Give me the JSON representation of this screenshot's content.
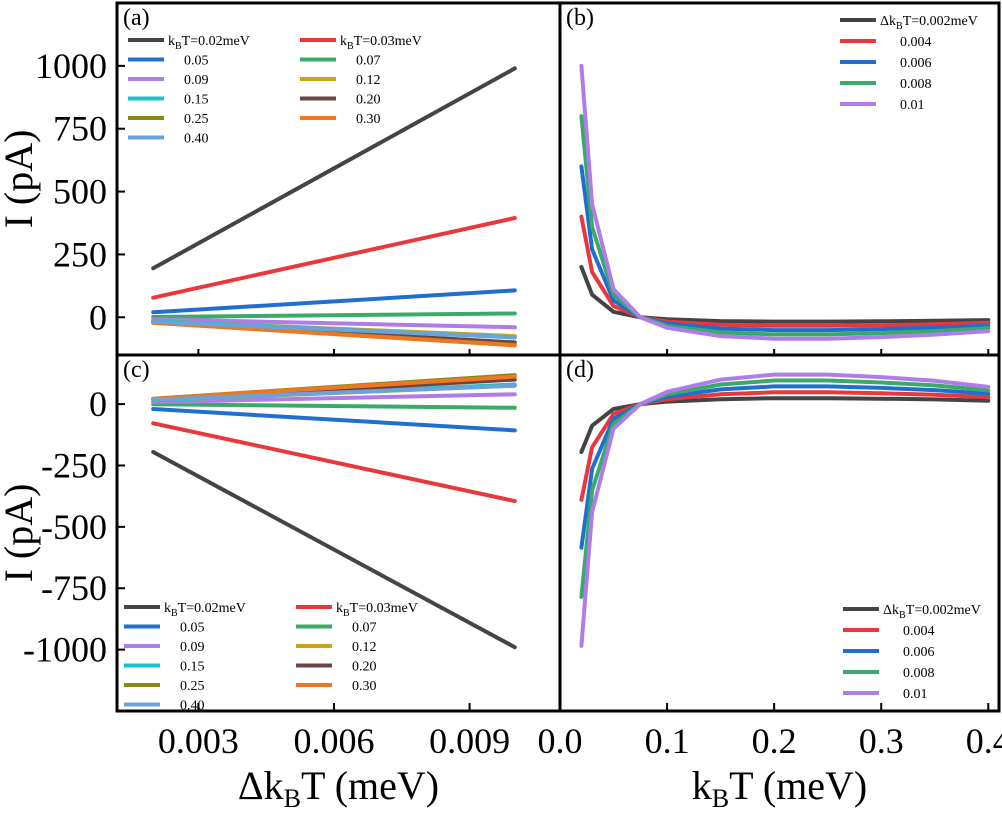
{
  "chart_data": [
    {
      "panel": "(a)",
      "type": "line",
      "ylabel_parts": [
        "I (pA)"
      ],
      "ylim": [
        -150,
        1250
      ],
      "xlim": [
        0.0012,
        0.011
      ],
      "yticks": [
        0,
        250,
        500,
        750,
        1000
      ],
      "ytick_labels": [
        "0",
        "250",
        "500",
        "750",
        "1000"
      ],
      "legend_title": "k_B T",
      "legend_cols": [
        [
          {
            "label_main": "k",
            "label_sub": "B",
            "label_rest": "T=0.02meV"
          },
          {
            "label_main": "0.05"
          },
          {
            "label_main": "0.09"
          },
          {
            "label_main": "0.15"
          },
          {
            "label_main": "0.25"
          },
          {
            "label_main": "0.40"
          }
        ],
        [
          {
            "label_main": "k",
            "label_sub": "B",
            "label_rest": "T=0.03meV"
          },
          {
            "label_main": "0.07"
          },
          {
            "label_main": "0.12"
          },
          {
            "label_main": "0.20"
          },
          {
            "label_main": "0.30"
          }
        ]
      ],
      "series": [
        {
          "kT": "0.02",
          "color": "#444444",
          "x": [
            0.002,
            0.01
          ],
          "y": [
            195,
            990
          ]
        },
        {
          "kT": "0.03",
          "color": "#e8383d",
          "x": [
            0.002,
            0.01
          ],
          "y": [
            78,
            395
          ]
        },
        {
          "kT": "0.05",
          "color": "#1f6fd1",
          "x": [
            0.002,
            0.01
          ],
          "y": [
            20,
            107
          ]
        },
        {
          "kT": "0.07",
          "color": "#3aaa6a",
          "x": [
            0.002,
            0.01
          ],
          "y": [
            1,
            15
          ]
        },
        {
          "kT": "0.09",
          "color": "#b07ce8",
          "x": [
            0.002,
            0.01
          ],
          "y": [
            -8,
            -40
          ]
        },
        {
          "kT": "0.12",
          "color": "#c9a413",
          "x": [
            0.002,
            0.01
          ],
          "y": [
            -15,
            -75
          ]
        },
        {
          "kT": "0.15",
          "color": "#17c3c8",
          "x": [
            0.002,
            0.01
          ],
          "y": [
            -15,
            -80
          ]
        },
        {
          "kT": "0.20",
          "color": "#6b4545",
          "x": [
            0.002,
            0.01
          ],
          "y": [
            -20,
            -100
          ]
        },
        {
          "kT": "0.25",
          "color": "#8a8a10",
          "x": [
            0.002,
            0.01
          ],
          "y": [
            -22,
            -110
          ]
        },
        {
          "kT": "0.30",
          "color": "#f07722",
          "x": [
            0.002,
            0.01
          ],
          "y": [
            -22,
            -112
          ]
        },
        {
          "kT": "0.40",
          "color": "#6aa3d8",
          "x": [
            0.002,
            0.01
          ],
          "y": [
            -18,
            -80
          ]
        }
      ]
    },
    {
      "panel": "(b)",
      "type": "line",
      "xlim": [
        0,
        0.41
      ],
      "ylim": [
        -150,
        1250
      ],
      "legend_cols": [
        [
          {
            "label_main": "Δk",
            "label_sub": "B",
            "label_rest": "T=0.002meV"
          },
          {
            "label_main": "0.004"
          },
          {
            "label_main": "0.006"
          },
          {
            "label_main": "0.008"
          },
          {
            "label_main": "0.01"
          }
        ]
      ],
      "series": [
        {
          "dkT": "0.002",
          "color": "#444444",
          "x": [
            0.02,
            0.03,
            0.05,
            0.075,
            0.1,
            0.15,
            0.2,
            0.25,
            0.3,
            0.35,
            0.4
          ],
          "y": [
            200,
            90,
            22,
            0,
            -8,
            -15,
            -17,
            -17,
            -16,
            -14,
            -11
          ]
        },
        {
          "dkT": "0.004",
          "color": "#e8383d",
          "x": [
            0.02,
            0.03,
            0.05,
            0.075,
            0.1,
            0.15,
            0.2,
            0.25,
            0.3,
            0.35,
            0.4
          ],
          "y": [
            400,
            180,
            45,
            0,
            -17,
            -30,
            -34,
            -34,
            -32,
            -28,
            -22
          ]
        },
        {
          "dkT": "0.006",
          "color": "#1f6fd1",
          "x": [
            0.02,
            0.03,
            0.05,
            0.075,
            0.1,
            0.15,
            0.2,
            0.25,
            0.3,
            0.35,
            0.4
          ],
          "y": [
            600,
            270,
            67,
            0,
            -25,
            -45,
            -51,
            -51,
            -47,
            -41,
            -33
          ]
        },
        {
          "dkT": "0.008",
          "color": "#3aaa6a",
          "x": [
            0.02,
            0.03,
            0.05,
            0.075,
            0.1,
            0.15,
            0.2,
            0.25,
            0.3,
            0.35,
            0.4
          ],
          "y": [
            800,
            360,
            90,
            0,
            -34,
            -60,
            -68,
            -68,
            -63,
            -55,
            -44
          ]
        },
        {
          "dkT": "0.01",
          "color": "#b07ce8",
          "x": [
            0.02,
            0.03,
            0.05,
            0.075,
            0.1,
            0.15,
            0.2,
            0.25,
            0.3,
            0.35,
            0.4
          ],
          "y": [
            1000,
            450,
            112,
            0,
            -42,
            -75,
            -85,
            -85,
            -79,
            -69,
            -55
          ]
        }
      ]
    },
    {
      "panel": "(c)",
      "type": "line",
      "ylabel_parts": [
        "I (pA)"
      ],
      "xlim": [
        0.0012,
        0.011
      ],
      "ylim": [
        -1250,
        200
      ],
      "yticks": [
        0,
        -250,
        -500,
        -750,
        -1000
      ],
      "ytick_labels": [
        "0",
        "-250",
        "-500",
        "-750",
        "-1000"
      ],
      "xticks": [
        0.003,
        0.006,
        0.009
      ],
      "xtick_labels": [
        "0.003",
        "0.006",
        "0.009"
      ],
      "xlabel_parts": [
        "Δk",
        "B",
        "T (meV)"
      ],
      "legend_cols": [
        [
          {
            "label_main": "k",
            "label_sub": "B",
            "label_rest": "T=0.02meV"
          },
          {
            "label_main": "0.05"
          },
          {
            "label_main": "0.09"
          },
          {
            "label_main": "0.15"
          },
          {
            "label_main": "0.25"
          },
          {
            "label_main": "0.40"
          }
        ],
        [
          {
            "label_main": "k",
            "label_sub": "B",
            "label_rest": "T=0.03meV"
          },
          {
            "label_main": "0.07"
          },
          {
            "label_main": "0.12"
          },
          {
            "label_main": "0.20"
          },
          {
            "label_main": "0.30"
          }
        ]
      ],
      "series": [
        {
          "kT": "0.02",
          "color": "#444444",
          "x": [
            0.002,
            0.01
          ],
          "y": [
            -195,
            -990
          ]
        },
        {
          "kT": "0.03",
          "color": "#e8383d",
          "x": [
            0.002,
            0.01
          ],
          "y": [
            -78,
            -395
          ]
        },
        {
          "kT": "0.05",
          "color": "#1f6fd1",
          "x": [
            0.002,
            0.01
          ],
          "y": [
            -20,
            -107
          ]
        },
        {
          "kT": "0.07",
          "color": "#3aaa6a",
          "x": [
            0.002,
            0.01
          ],
          "y": [
            -1,
            -15
          ]
        },
        {
          "kT": "0.09",
          "color": "#b07ce8",
          "x": [
            0.002,
            0.01
          ],
          "y": [
            8,
            40
          ]
        },
        {
          "kT": "0.12",
          "color": "#c9a413",
          "x": [
            0.002,
            0.01
          ],
          "y": [
            15,
            75
          ]
        },
        {
          "kT": "0.15",
          "color": "#17c3c8",
          "x": [
            0.002,
            0.01
          ],
          "y": [
            15,
            80
          ]
        },
        {
          "kT": "0.20",
          "color": "#6b4545",
          "x": [
            0.002,
            0.01
          ],
          "y": [
            20,
            100
          ]
        },
        {
          "kT": "0.25",
          "color": "#8a8a10",
          "x": [
            0.002,
            0.01
          ],
          "y": [
            22,
            118
          ]
        },
        {
          "kT": "0.30",
          "color": "#f07722",
          "x": [
            0.002,
            0.01
          ],
          "y": [
            22,
            112
          ]
        },
        {
          "kT": "0.40",
          "color": "#6aa3d8",
          "x": [
            0.002,
            0.01
          ],
          "y": [
            18,
            75
          ]
        }
      ]
    },
    {
      "panel": "(d)",
      "type": "line",
      "xlim": [
        0,
        0.41
      ],
      "ylim": [
        -1250,
        200
      ],
      "xticks": [
        0.0,
        0.1,
        0.2,
        0.3,
        0.4
      ],
      "xtick_labels": [
        "0.0",
        "0.1",
        "0.2",
        "0.3",
        "0.4"
      ],
      "xlabel_parts": [
        "k",
        "B",
        "T (meV)"
      ],
      "legend_cols": [
        [
          {
            "label_main": "Δk",
            "label_sub": "B",
            "label_rest": "T=0.002meV"
          },
          {
            "label_main": "0.004"
          },
          {
            "label_main": "0.006"
          },
          {
            "label_main": "0.008"
          },
          {
            "label_main": "0.01"
          }
        ]
      ],
      "series": [
        {
          "dkT": "0.002",
          "color": "#444444",
          "x": [
            0.02,
            0.03,
            0.05,
            0.075,
            0.1,
            0.15,
            0.2,
            0.25,
            0.3,
            0.35,
            0.4
          ],
          "y": [
            -195,
            -88,
            -20,
            0,
            10,
            20,
            24,
            24,
            22,
            19,
            14
          ]
        },
        {
          "dkT": "0.004",
          "color": "#e8383d",
          "x": [
            0.02,
            0.03,
            0.05,
            0.075,
            0.1,
            0.15,
            0.2,
            0.25,
            0.3,
            0.35,
            0.4
          ],
          "y": [
            -390,
            -176,
            -40,
            0,
            20,
            40,
            48,
            48,
            44,
            38,
            28
          ]
        },
        {
          "dkT": "0.006",
          "color": "#1f6fd1",
          "x": [
            0.02,
            0.03,
            0.05,
            0.075,
            0.1,
            0.15,
            0.2,
            0.25,
            0.3,
            0.35,
            0.4
          ],
          "y": [
            -585,
            -264,
            -60,
            0,
            30,
            60,
            72,
            72,
            66,
            57,
            42
          ]
        },
        {
          "dkT": "0.008",
          "color": "#3aaa6a",
          "x": [
            0.02,
            0.03,
            0.05,
            0.075,
            0.1,
            0.15,
            0.2,
            0.25,
            0.3,
            0.35,
            0.4
          ],
          "y": [
            -785,
            -352,
            -80,
            0,
            40,
            80,
            96,
            96,
            88,
            76,
            56
          ]
        },
        {
          "dkT": "0.01",
          "color": "#b07ce8",
          "x": [
            0.02,
            0.03,
            0.05,
            0.075,
            0.1,
            0.15,
            0.2,
            0.25,
            0.3,
            0.35,
            0.4
          ],
          "y": [
            -985,
            -440,
            -100,
            0,
            50,
            100,
            120,
            120,
            110,
            95,
            70
          ]
        }
      ]
    }
  ]
}
